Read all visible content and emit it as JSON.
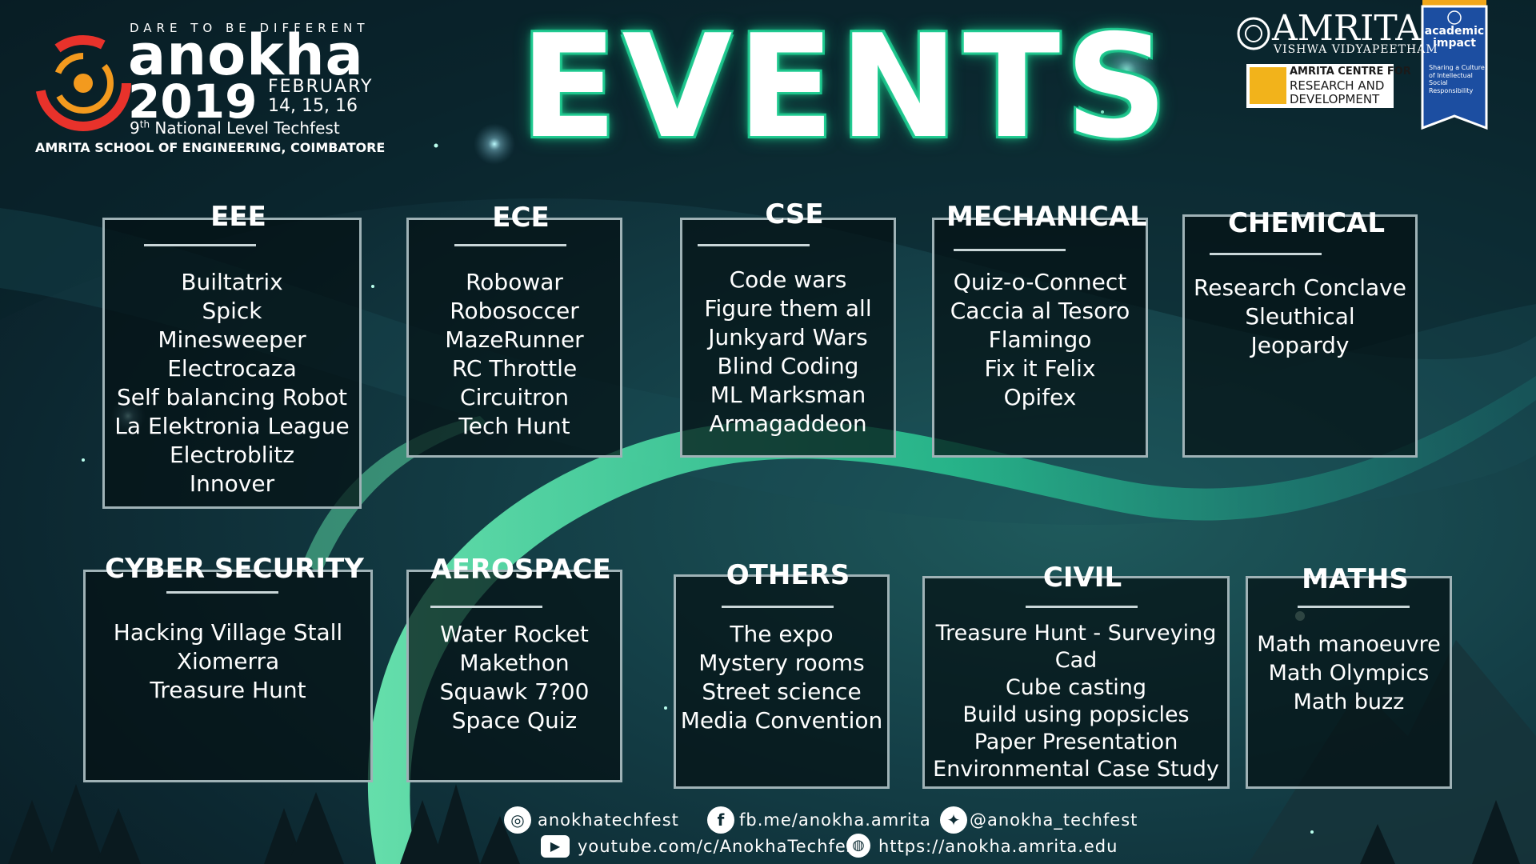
{
  "logo": {
    "tagline": "DARE TO BE DIFFERENT",
    "wordmark": "anokha",
    "year": "2019",
    "month": "FEBRUARY",
    "dates": "14, 15, 16",
    "edition_num": "9",
    "edition_sup": "th",
    "edition_text": " National Level Techfest",
    "school": "AMRITA SCHOOL OF ENGINEERING, COIMBATORE"
  },
  "title": "EVENTS",
  "amrita": {
    "name": "AMRITA",
    "sub": "VISHWA VIDYAPEETHAM",
    "rd_line1": "AMRITA CENTRE FOR",
    "rd_line2": "RESEARCH AND",
    "rd_line3": "DEVELOPMENT",
    "banner_title": "academic impact",
    "banner_sub": "Sharing a Culture of Intellectual Social Responsibility"
  },
  "departments": [
    {
      "name": "EEE",
      "events": [
        "Builtatrix",
        "Spick",
        "Minesweeper",
        "Electrocaza",
        "Self balancing Robot",
        "La Elektronia League",
        "Electroblitz",
        "Innover"
      ]
    },
    {
      "name": "ECE",
      "events": [
        "Robowar",
        "Robosoccer",
        "MazeRunner",
        "RC Throttle",
        "Circuitron",
        "Tech Hunt"
      ]
    },
    {
      "name": "CSE",
      "events": [
        "Code wars",
        "Figure them all",
        "Junkyard Wars",
        "Blind Coding",
        "ML Marksman",
        "Armagaddeon"
      ]
    },
    {
      "name": "MECHANICAL",
      "events": [
        "Quiz-o-Connect",
        "Caccia al Tesoro",
        "Flamingo",
        "Fix it Felix",
        "Opifex"
      ]
    },
    {
      "name": "CHEMICAL",
      "events": [
        "Research Conclave",
        "Sleuthical",
        "Jeopardy"
      ]
    },
    {
      "name": "CYBER SECURITY",
      "events": [
        "Hacking Village Stall",
        "Xiomerra",
        "Treasure Hunt"
      ]
    },
    {
      "name": "AEROSPACE",
      "events": [
        "Water Rocket",
        "Makethon",
        "Squawk 7?00",
        "Space Quiz"
      ]
    },
    {
      "name": "OTHERS",
      "events": [
        "The expo",
        "Mystery rooms",
        "Street science",
        "Media Convention"
      ]
    },
    {
      "name": "CIVIL",
      "events": [
        "Treasure Hunt - Surveying",
        "Cad",
        "Cube casting",
        "Build using popsicles",
        "Paper Presentation",
        "Environmental Case Study"
      ]
    },
    {
      "name": "MATHS",
      "events": [
        "Math manoeuvre",
        "Math Olympics",
        "Math buzz"
      ]
    }
  ],
  "footer": {
    "instagram": "anokhatechfest",
    "facebook": "fb.me/anokha.amrita",
    "twitter": "@anokha_techfest",
    "youtube": "youtube.com/c/AnokhaTechfest",
    "website": "https://anokha.amrita.edu"
  },
  "colors": {
    "accent": "#23c98f",
    "box_border": "#9fb2b6",
    "logo_red": "#e8322b",
    "logo_orange": "#f39a1e",
    "rd_yellow": "#f2b31b",
    "banner_blue": "#1c4ea1"
  }
}
